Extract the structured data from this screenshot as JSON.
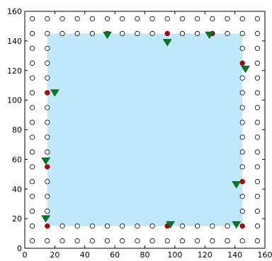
{
  "chart_data": {
    "type": "scatter",
    "title": "",
    "xlabel": "",
    "ylabel": "",
    "xlim": [
      0,
      160
    ],
    "ylim": [
      0,
      160
    ],
    "xticks": [
      0,
      20,
      40,
      60,
      80,
      100,
      120,
      140,
      160
    ],
    "yticks": [
      0,
      20,
      40,
      60,
      80,
      100,
      120,
      140,
      160
    ],
    "xtick_labels": [
      "0",
      "20",
      "40",
      "60",
      "80",
      "100",
      "120",
      "140",
      "160"
    ],
    "ytick_labels": [
      "0",
      "20",
      "40",
      "60",
      "80",
      "100",
      "120",
      "140",
      "160"
    ],
    "grid": false,
    "legend": "none",
    "colors": {
      "region_fill": "#bfe8fb",
      "open_circle_edge": "#000000",
      "red_point": "#c00000",
      "green_triangle": "#007a20"
    },
    "region": {
      "x": [
        15,
        145
      ],
      "y": [
        15,
        145
      ]
    },
    "grid_points": {
      "marker": "open-circle",
      "x_values": [
        5,
        15,
        25,
        35,
        45,
        55,
        65,
        75,
        85,
        95,
        105,
        115,
        125,
        135,
        145,
        155
      ],
      "y_values": [
        5,
        15,
        25,
        35,
        45,
        55,
        65,
        75,
        85,
        95,
        105,
        115,
        125,
        135,
        145,
        155
      ]
    },
    "red_points": {
      "marker": "circle",
      "points": [
        [
          15,
          15
        ],
        [
          95,
          15
        ],
        [
          145,
          15
        ],
        [
          15,
          55
        ],
        [
          15,
          105
        ],
        [
          145,
          45
        ],
        [
          145,
          125
        ],
        [
          55,
          145
        ],
        [
          95,
          145
        ],
        [
          125,
          145
        ]
      ]
    },
    "green_triangles": {
      "marker": "triangle-down",
      "points": [
        [
          14,
          20
        ],
        [
          97,
          16
        ],
        [
          141,
          16
        ],
        [
          14,
          59
        ],
        [
          20,
          105
        ],
        [
          141,
          43
        ],
        [
          147,
          121
        ],
        [
          55,
          144
        ],
        [
          95,
          139
        ],
        [
          123,
          144
        ]
      ]
    }
  }
}
